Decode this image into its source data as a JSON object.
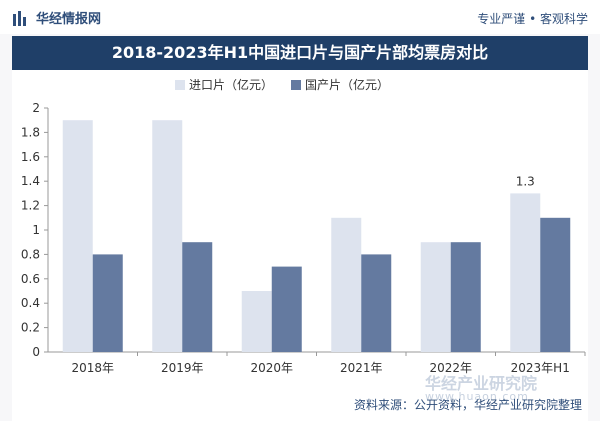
{
  "header": {
    "brand_name": "华经情报网",
    "slogan": "专业严谨 • 客观科学"
  },
  "chart_data": {
    "type": "bar",
    "title": "2018-2023年H1中国进口片与国产片部均票房对比",
    "categories": [
      "2018年",
      "2019年",
      "2020年",
      "2021年",
      "2022年",
      "2023年H1"
    ],
    "series": [
      {
        "name": "进口片（亿元）",
        "color": "#dde3ee",
        "values": [
          1.9,
          1.9,
          0.5,
          1.1,
          0.9,
          1.3
        ]
      },
      {
        "name": "国产片（亿元）",
        "color": "#647aa0",
        "values": [
          0.8,
          0.9,
          0.7,
          0.8,
          0.9,
          1.1
        ]
      }
    ],
    "ylim": [
      0,
      2
    ],
    "yticks": [
      "0",
      "0.2",
      "0.4",
      "0.6",
      "0.8",
      "1",
      "1.2",
      "1.4",
      "1.6",
      "1.8",
      "2"
    ],
    "data_labels": [
      {
        "series": 0,
        "index": 5,
        "text": "1.3"
      }
    ],
    "grid": false,
    "legend_position": "top"
  },
  "footer": {
    "source": "资料来源：公开资料，华经产业研究院整理",
    "watermark": "华经产业研究院",
    "watermark_url": "www.huaon.com"
  }
}
